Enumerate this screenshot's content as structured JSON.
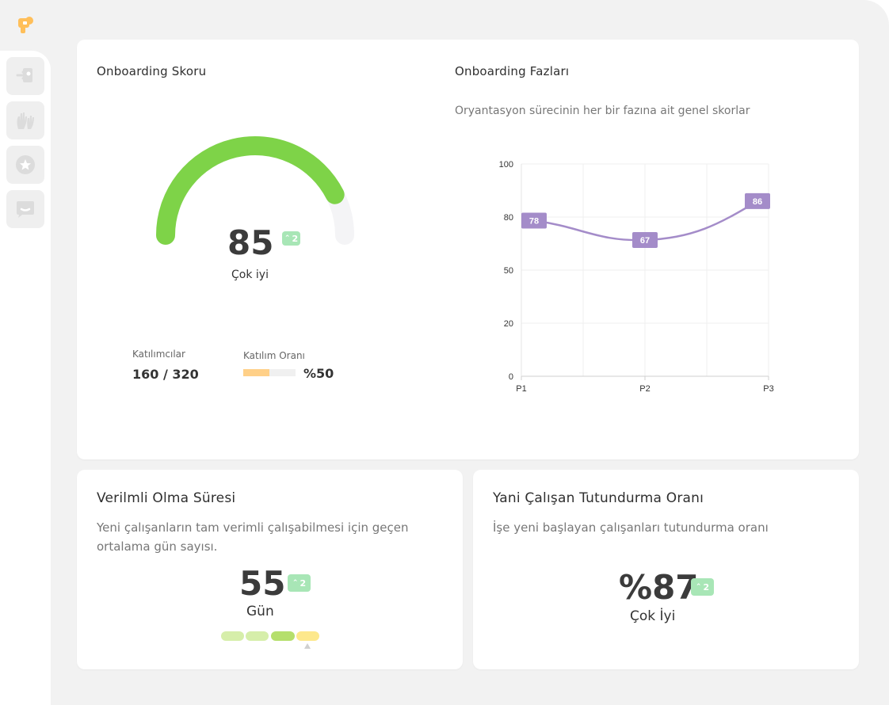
{
  "sidebar": {
    "logo_icon": "puzzle-person-logo",
    "items": [
      {
        "icon": "onboarding-icon"
      },
      {
        "icon": "hands-icon"
      },
      {
        "icon": "star-icon"
      },
      {
        "icon": "chat-icon"
      }
    ]
  },
  "onboarding_score": {
    "title": "Onboarding Skoru",
    "score": "85",
    "score_fraction": 0.85,
    "badge": "2",
    "rating": "Çok iyi",
    "participants_label": "Katılımcılar",
    "participants_value": "160 / 320",
    "participation_label": "Katılım Oranı",
    "participation_value": "%50",
    "participation_fraction": 0.5,
    "gauge_color": "#7ed348",
    "gauge_track_color": "#f4f4f6"
  },
  "onboarding_phases": {
    "title": "Onboarding Fazları",
    "subtitle": "Oryantasyon sürecinin her bir fazına ait genel skorlar",
    "line_color": "#a48cc9"
  },
  "chart_data": {
    "type": "line",
    "title": "Onboarding Fazları",
    "xlabel": "",
    "ylabel": "",
    "categories": [
      "P1",
      "P2",
      "P3"
    ],
    "series": [
      {
        "values": [
          78,
          67,
          86
        ]
      }
    ],
    "y_ticks": [
      0,
      20,
      50,
      80,
      100
    ],
    "ylim": [
      0,
      100
    ],
    "grid": true,
    "data_labels": [
      "78",
      "67",
      "86"
    ]
  },
  "productivity": {
    "title": "Verilmli Olma Süresi",
    "subtitle": "Yeni çalışanların tam verimli çalışabilmesi için geçen ortalama gün sayısı.",
    "value": "55",
    "badge": "2",
    "unit": "Gün",
    "segment_colors": [
      "#d6eeaa",
      "#d6eeaa",
      "#b5df6c",
      "#fde88c"
    ]
  },
  "retention": {
    "title": "Yani Çalışan Tutundurma Oranı",
    "subtitle": "İşe yeni başlayan çalışanları tutundurma oranı",
    "value": "%87",
    "badge": "2",
    "rating": "Çok İyi"
  }
}
